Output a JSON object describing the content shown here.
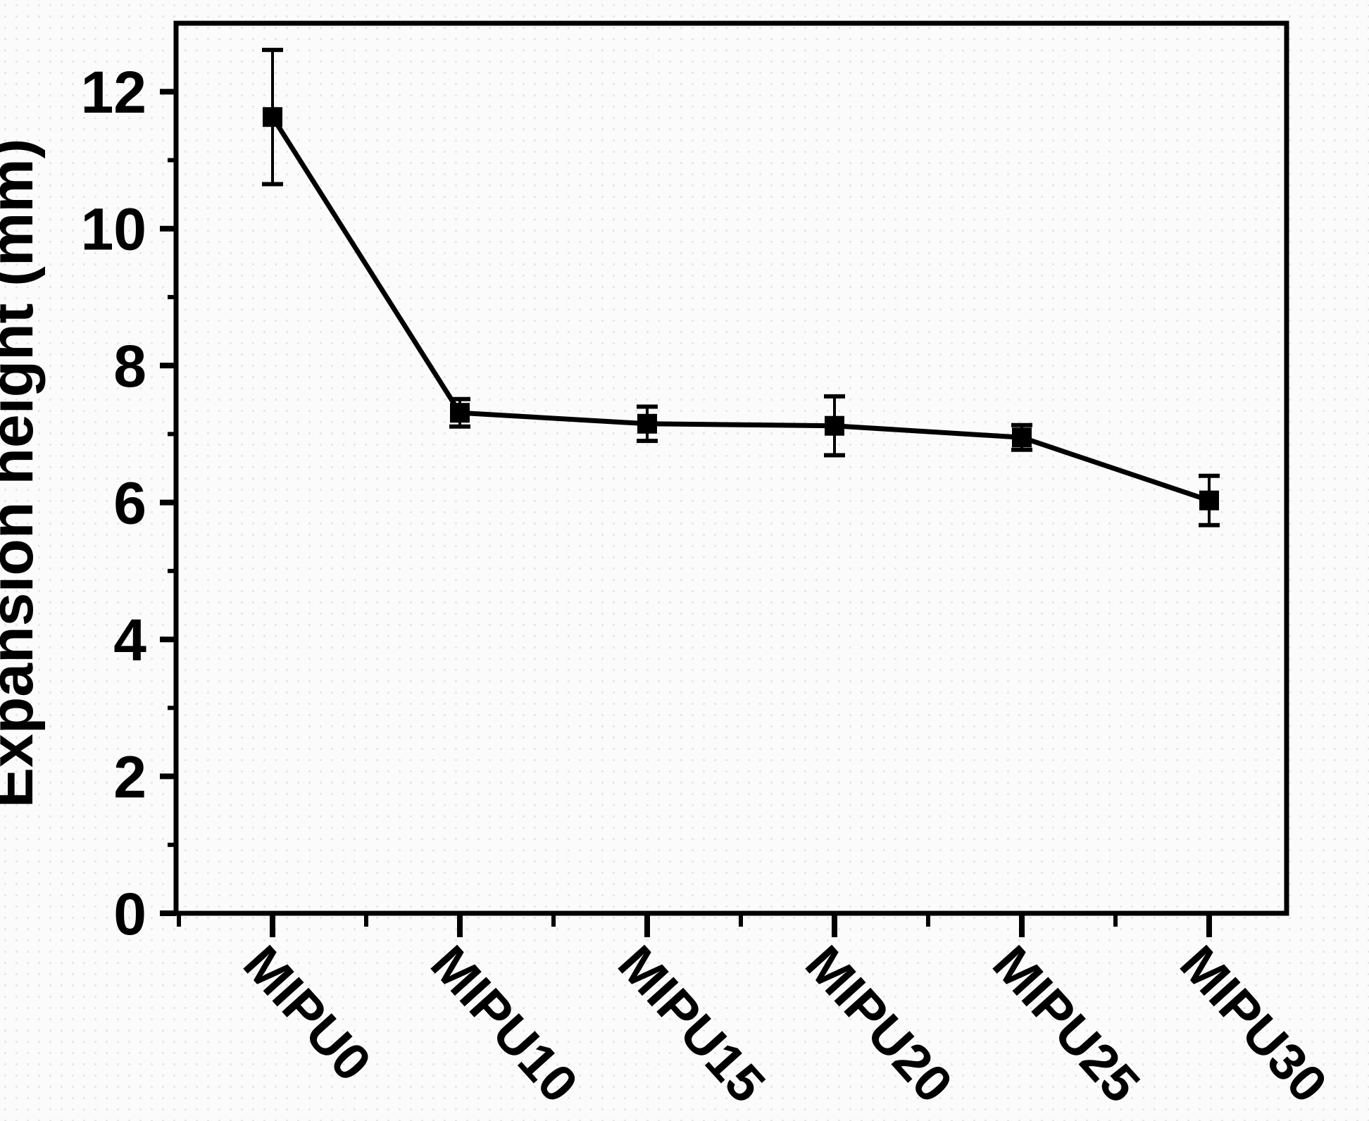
{
  "figure": {
    "background": "#fbfbfb",
    "halftone_dot_color": "#e8e8e8",
    "frame_color": "#000000"
  },
  "chart_data": {
    "type": "line",
    "title": "",
    "ylabel": "Expansion height (mm)",
    "xlabel": "",
    "categories": [
      "MIPU0",
      "MIPU10",
      "MIPU15",
      "MIPU20",
      "MIPU25",
      "MIPU30"
    ],
    "series": [
      {
        "name": "Expansion height",
        "marker": "filled-square",
        "color": "#000000",
        "values": [
          11.63,
          7.31,
          7.15,
          7.12,
          6.95,
          6.03
        ],
        "errors": [
          0.98,
          0.2,
          0.25,
          0.43,
          0.18,
          0.36
        ]
      }
    ],
    "ylim": [
      0,
      13
    ],
    "yticks": [
      0,
      2,
      4,
      6,
      8,
      10,
      12
    ],
    "ytick_labels": [
      "0",
      "2",
      "4",
      "6",
      "8",
      "10",
      "12"
    ],
    "y_minor_tick_step": 1,
    "x_minor_ticks": "between-categories",
    "x_tick_label_rotation_deg": 48,
    "grid": false,
    "legend": "none",
    "error_bars": "vertical-with-caps"
  }
}
